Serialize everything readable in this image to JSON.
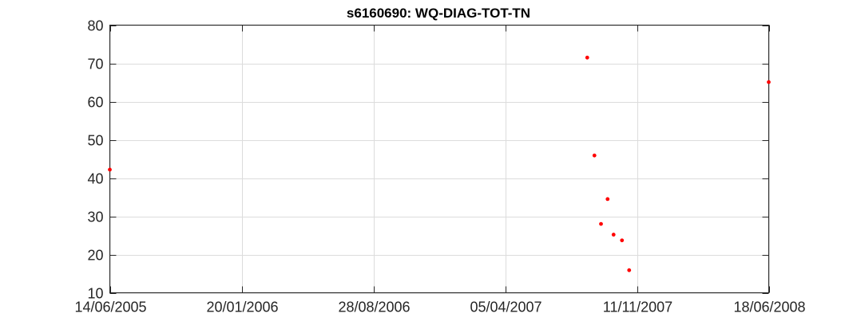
{
  "chart_data": {
    "type": "scatter",
    "title": "s6160690: WQ-DIAG-TOT-TN",
    "xlabel": "",
    "ylabel": "",
    "x_axis_type": "date",
    "x_tick_labels": [
      "14/06/2005",
      "20/01/2006",
      "28/08/2006",
      "05/04/2007",
      "11/11/2007",
      "18/06/2008"
    ],
    "x_ticks": [
      "2005-06-14",
      "2006-01-20",
      "2006-08-28",
      "2007-04-05",
      "2007-11-11",
      "2008-06-18"
    ],
    "xlim": [
      "2005-06-14",
      "2008-06-18"
    ],
    "y_ticks": [
      10,
      20,
      30,
      40,
      50,
      60,
      70,
      80
    ],
    "ylim": [
      10,
      80
    ],
    "grid": true,
    "marker_color": "#ff0000",
    "series": [
      {
        "x": [
          "2005-06-14",
          "2007-08-20",
          "2007-09-01",
          "2007-09-12",
          "2007-09-23",
          "2007-10-03",
          "2007-10-17",
          "2007-10-29",
          "2008-06-18"
        ],
        "y": [
          42.2,
          71.5,
          45.9,
          28.0,
          34.5,
          25.2,
          23.7,
          15.9,
          65.1
        ]
      }
    ]
  }
}
